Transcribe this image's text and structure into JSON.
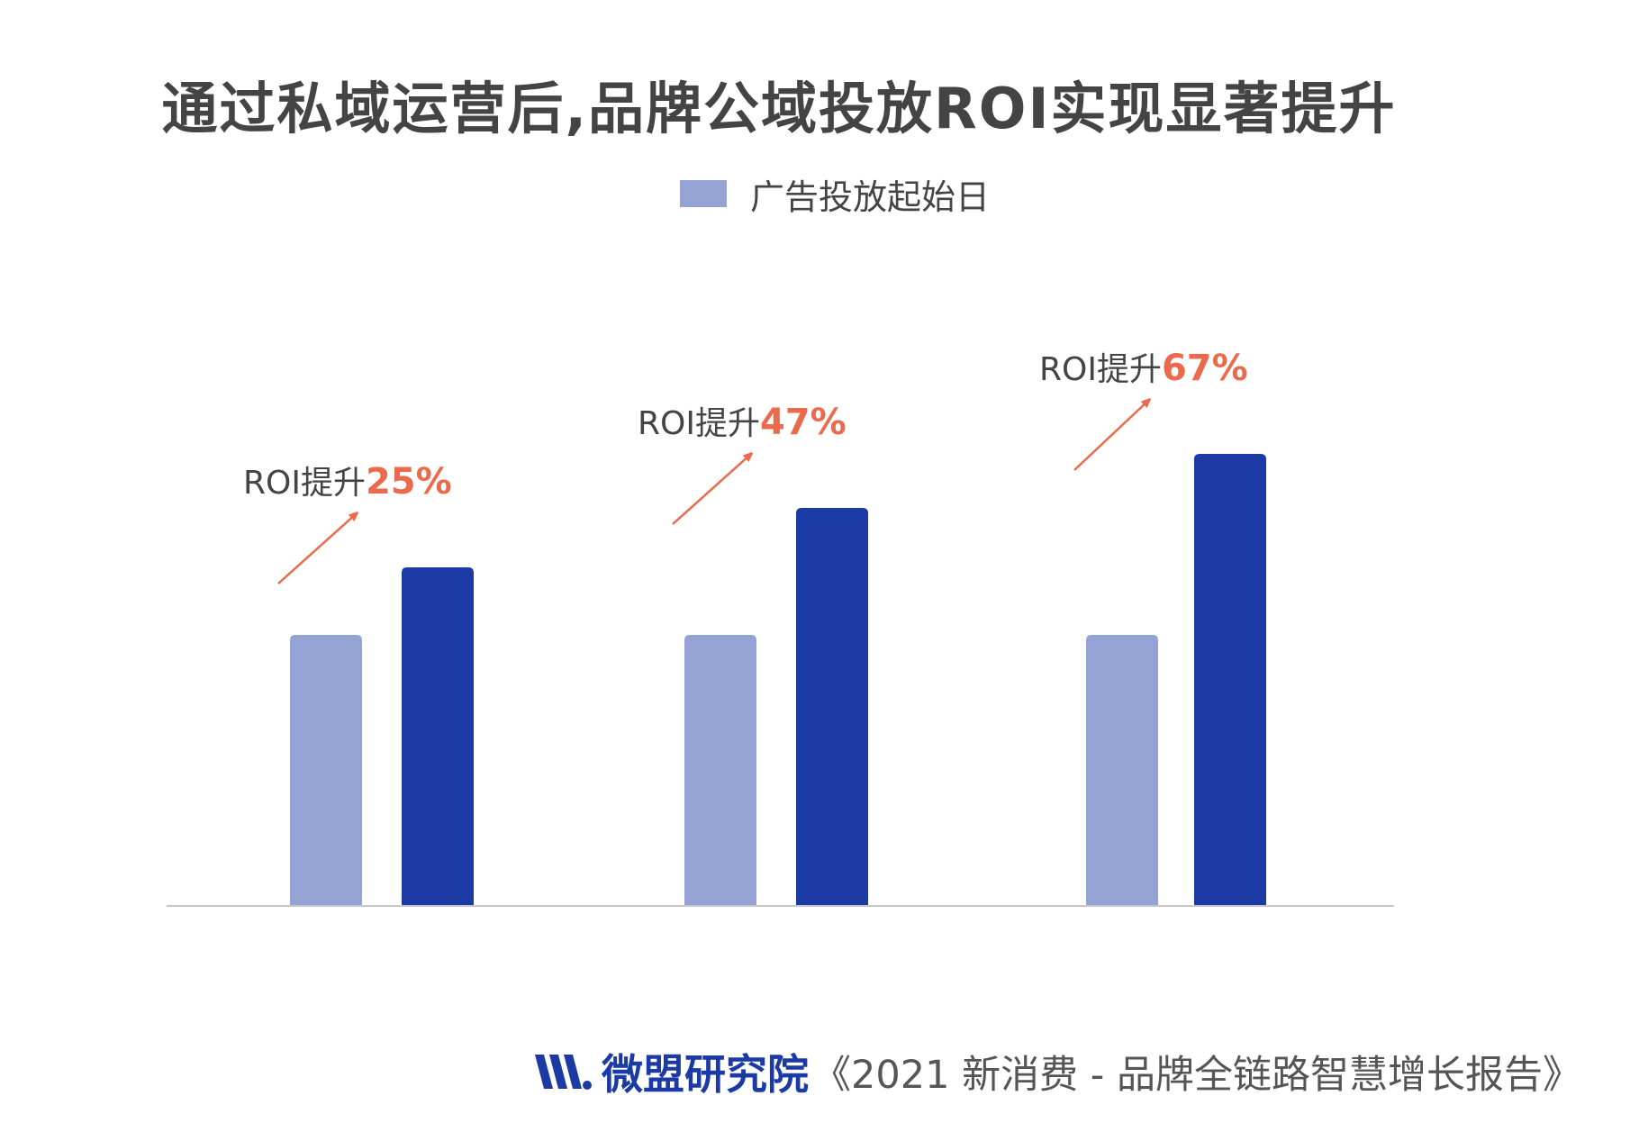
{
  "title": "通过私域运营后,品牌公域投放ROI实现显著提升",
  "legend": {
    "label": "广告投放起始日"
  },
  "colors": {
    "baseline_bar": "#94a3d3",
    "after_bar": "#1b3aa5",
    "arrow": "#ec6a4c",
    "annotation_value": "#ec6a4c",
    "text": "#444444",
    "axis": "#c8c8c8"
  },
  "chart_data": {
    "type": "bar",
    "title": "通过私域运营后,品牌公域投放ROI实现显著提升",
    "xlabel": "",
    "ylabel": "",
    "ylim": [
      0,
      215
    ],
    "categories": [
      "",
      "",
      ""
    ],
    "series": [
      {
        "name": "广告投放起始日",
        "values": [
          100,
          100,
          100
        ]
      },
      {
        "name": "",
        "values": [
          125,
          147,
          167
        ]
      }
    ],
    "annotations": [
      {
        "prefix": "ROI提升",
        "value": "25%"
      },
      {
        "prefix": "ROI提升",
        "value": "47%"
      },
      {
        "prefix": "ROI提升",
        "value": "67%"
      }
    ],
    "grid": false,
    "legend_position": "top-center"
  },
  "source": {
    "brand": "微盟研究院",
    "report": "《2021 新消费 - 品牌全链路智慧增长报告》"
  }
}
